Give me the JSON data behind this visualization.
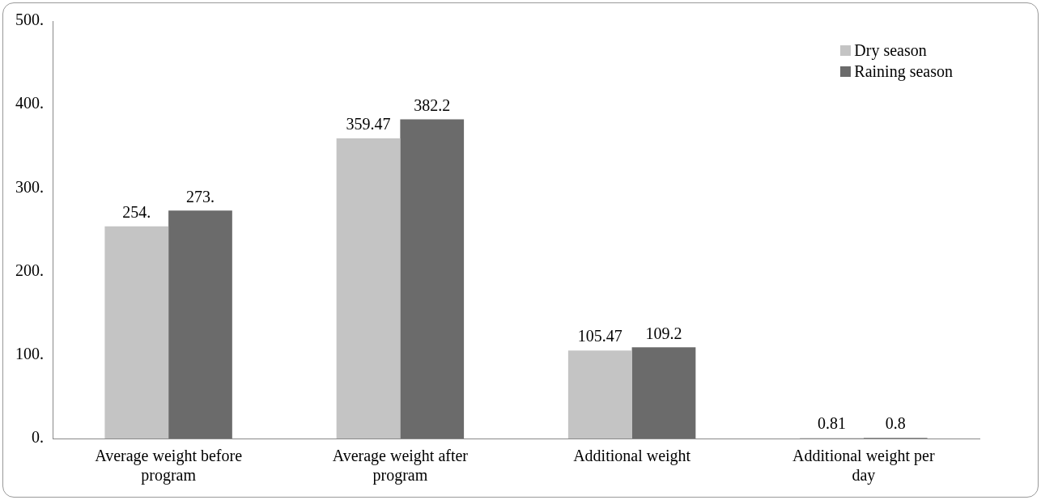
{
  "chart_data": {
    "type": "bar",
    "categories": [
      "Average weight before program",
      "Average weight after program",
      "Additional weight",
      "Additional weight per day"
    ],
    "series": [
      {
        "name": "Dry season",
        "color": "#c4c4c4",
        "values": [
          254,
          359.47,
          105.47,
          0.81
        ],
        "value_labels": [
          "254.",
          "359.47",
          "105.47",
          "0.81"
        ]
      },
      {
        "name": "Raining season",
        "color": "#6b6b6b",
        "values": [
          273,
          382.2,
          109.2,
          0.8
        ],
        "value_labels": [
          "273.",
          "382.2",
          "109.2",
          "0.8"
        ]
      }
    ],
    "ylim": [
      0,
      500
    ],
    "yticks": [
      {
        "value": 0,
        "label": "0."
      },
      {
        "value": 100,
        "label": "100."
      },
      {
        "value": 200,
        "label": "200."
      },
      {
        "value": 300,
        "label": "300."
      },
      {
        "value": 400,
        "label": "400."
      },
      {
        "value": 500,
        "label": "500."
      }
    ],
    "grid": false,
    "legend": "top right"
  }
}
